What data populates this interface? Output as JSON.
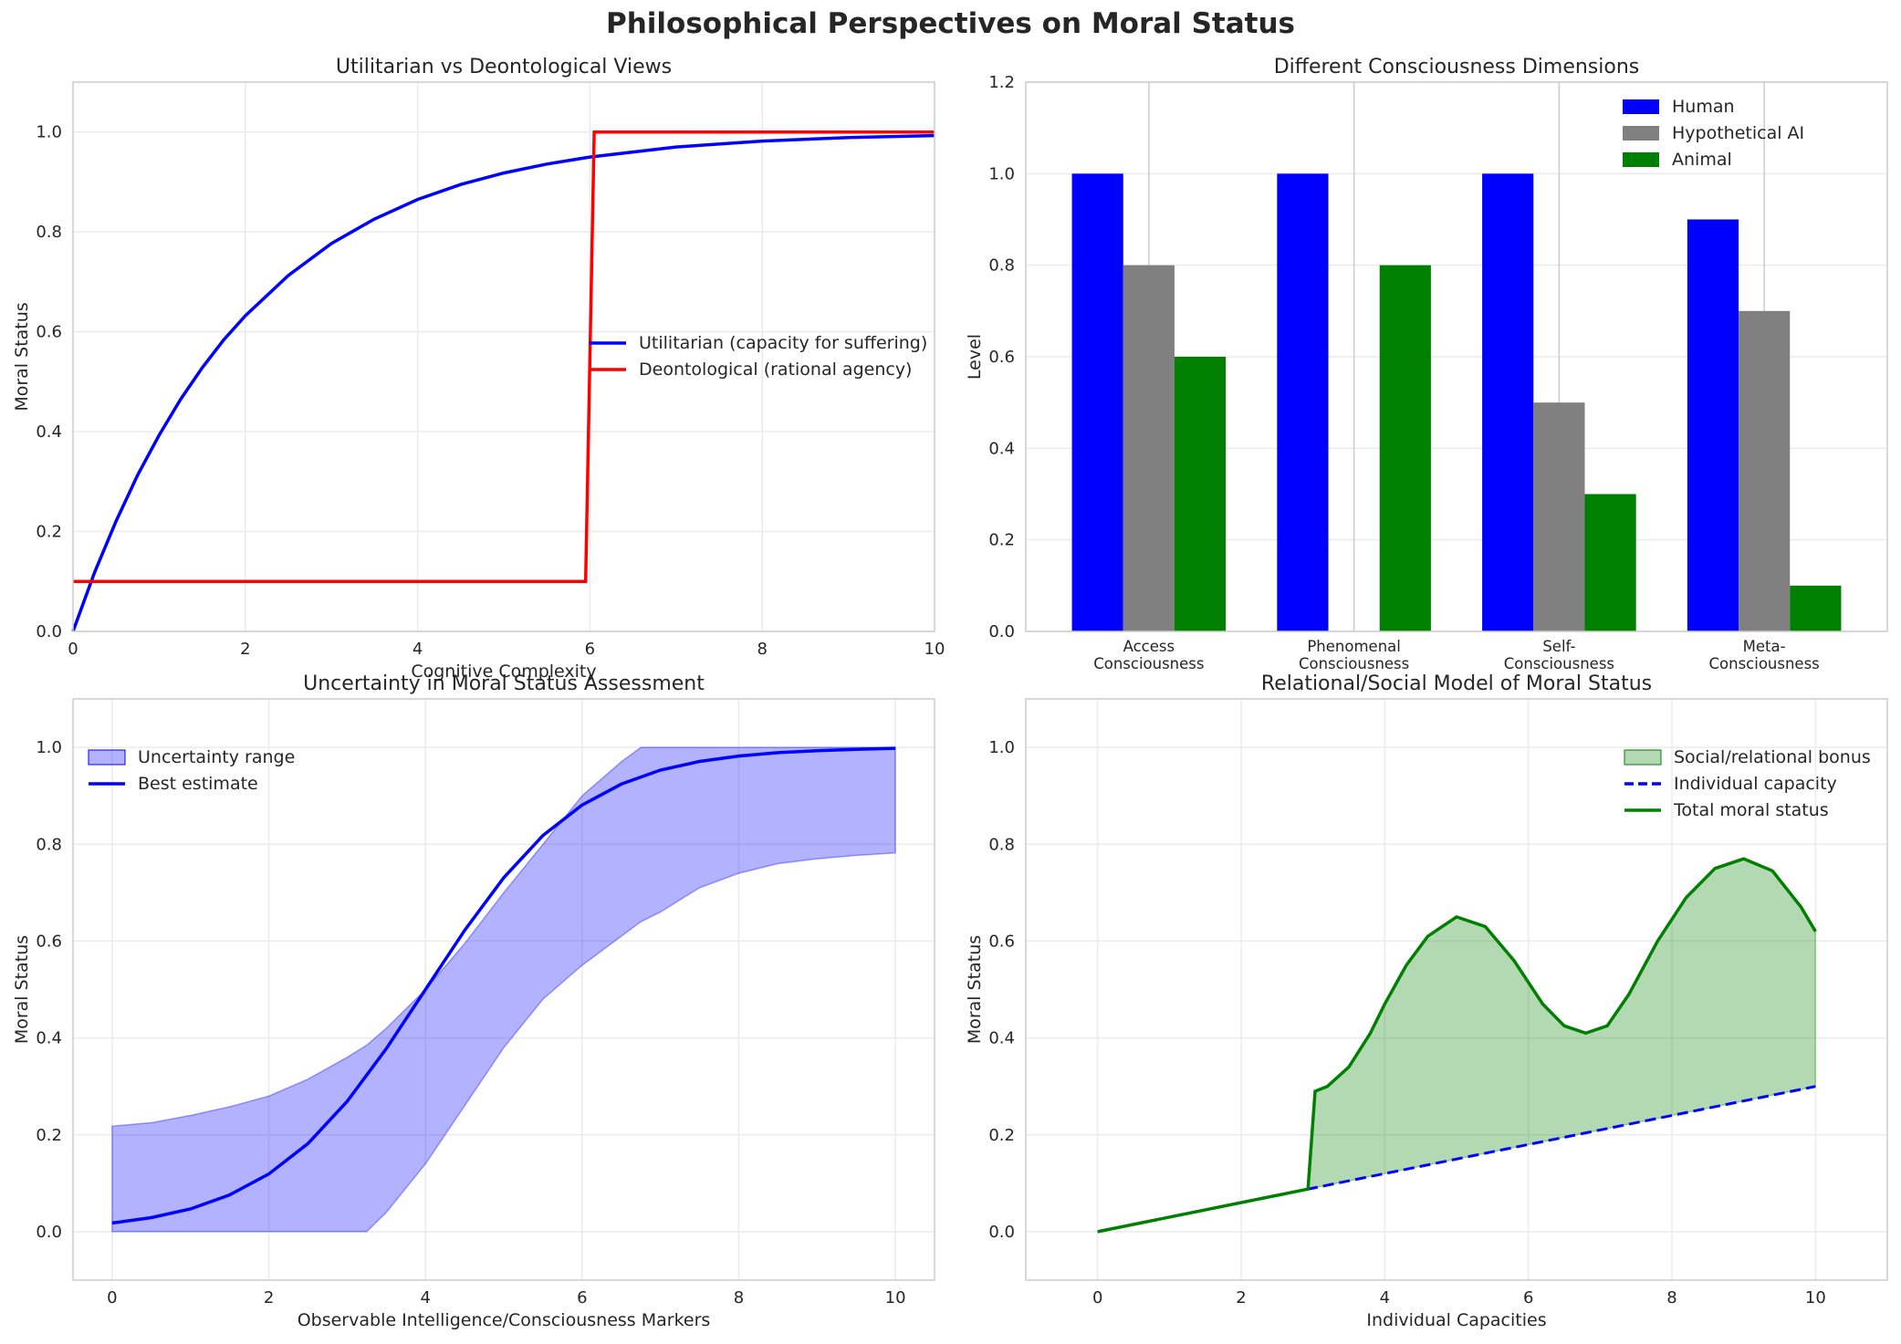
{
  "figure_title": "Philosophical Perspectives on Moral Status",
  "chart_data": [
    {
      "type": "line",
      "title": "Utilitarian vs Deontological Views",
      "xlabel": "Cognitive Complexity",
      "ylabel": "Moral Status",
      "xlim": [
        0,
        10
      ],
      "ylim": [
        0,
        1.1
      ],
      "xticks": [
        "0",
        "2",
        "4",
        "6",
        "8",
        "10"
      ],
      "yticks": [
        "0.0",
        "0.2",
        "0.4",
        "0.6",
        "0.8",
        "1.0"
      ],
      "grid": true,
      "legend": "center-right",
      "series": [
        {
          "name": "Utilitarian (capacity for suffering)",
          "color": "#0000ff",
          "x": [
            0,
            0.25,
            0.5,
            0.75,
            1,
            1.25,
            1.5,
            1.75,
            2,
            2.5,
            3,
            3.5,
            4,
            4.5,
            5,
            5.5,
            6,
            7,
            8,
            9,
            10
          ],
          "y": [
            0,
            0.118,
            0.221,
            0.313,
            0.393,
            0.465,
            0.528,
            0.584,
            0.632,
            0.713,
            0.777,
            0.826,
            0.865,
            0.895,
            0.918,
            0.936,
            0.95,
            0.97,
            0.982,
            0.989,
            0.993
          ]
        },
        {
          "name": "Deontological (rational agency)",
          "color": "#ff0000",
          "x": [
            0,
            5.95,
            6.05,
            10
          ],
          "y": [
            0.1,
            0.1,
            1.0,
            1.0
          ]
        }
      ]
    },
    {
      "type": "bar",
      "title": "Different Consciousness Dimensions",
      "xlabel": "",
      "ylabel": "Level",
      "ylim": [
        0,
        1.2
      ],
      "yticks": [
        "0.0",
        "0.2",
        "0.4",
        "0.6",
        "0.8",
        "1.0",
        "1.2"
      ],
      "categories": [
        [
          "Access",
          "Consciousness"
        ],
        [
          "Phenomenal",
          "Consciousness"
        ],
        [
          "Self-",
          "Consciousness"
        ],
        [
          "Meta-",
          "Consciousness"
        ]
      ],
      "grid": true,
      "legend": "top-right",
      "series": [
        {
          "name": "Human",
          "color": "#0000ff",
          "values": [
            1.0,
            1.0,
            1.0,
            0.9
          ]
        },
        {
          "name": "Hypothetical AI",
          "color": "#808080",
          "values": [
            0.8,
            0.0,
            0.5,
            0.7
          ]
        },
        {
          "name": "Animal",
          "color": "#008000",
          "values": [
            0.6,
            0.8,
            0.3,
            0.1
          ]
        }
      ]
    },
    {
      "type": "area",
      "title": "Uncertainty in Moral Status Assessment",
      "xlabel": "Observable Intelligence/Consciousness Markers",
      "ylabel": "Moral Status",
      "xlim": [
        -0.5,
        10.5
      ],
      "ylim": [
        -0.1,
        1.1
      ],
      "xticks": [
        "0",
        "2",
        "4",
        "6",
        "8",
        "10"
      ],
      "yticks": [
        "0.0",
        "0.2",
        "0.4",
        "0.6",
        "0.8",
        "1.0"
      ],
      "grid": true,
      "legend": "top-left",
      "series": [
        {
          "name": "Uncertainty range",
          "color": "#0000ff",
          "x": [
            0,
            0.5,
            1,
            1.5,
            2,
            2.5,
            3,
            3.25,
            3.5,
            4,
            4.5,
            5,
            5.5,
            6,
            6.5,
            6.75,
            7,
            7.5,
            8,
            8.5,
            9,
            9.5,
            10
          ],
          "upper": [
            0.218,
            0.225,
            0.24,
            0.258,
            0.28,
            0.315,
            0.36,
            0.385,
            0.42,
            0.5,
            0.595,
            0.7,
            0.8,
            0.9,
            0.97,
            1.0,
            1.0,
            1.0,
            1.0,
            1.0,
            1.0,
            1.0,
            1.0
          ],
          "lower": [
            0,
            0,
            0,
            0,
            0,
            0,
            0,
            0,
            0.04,
            0.14,
            0.26,
            0.38,
            0.48,
            0.55,
            0.61,
            0.64,
            0.66,
            0.71,
            0.74,
            0.76,
            0.77,
            0.777,
            0.782
          ]
        },
        {
          "name": "Best estimate",
          "color": "#0000ff",
          "x": [
            0,
            0.5,
            1,
            1.5,
            2,
            2.5,
            3,
            3.5,
            4,
            4.5,
            5,
            5.5,
            6,
            6.5,
            7,
            7.5,
            8,
            8.5,
            9,
            9.5,
            10
          ],
          "y": [
            0.018,
            0.029,
            0.047,
            0.076,
            0.119,
            0.182,
            0.269,
            0.378,
            0.5,
            0.622,
            0.731,
            0.818,
            0.881,
            0.924,
            0.953,
            0.971,
            0.982,
            0.989,
            0.993,
            0.996,
            0.998
          ]
        }
      ]
    },
    {
      "type": "area",
      "title": "Relational/Social Model of Moral Status",
      "xlabel": "Individual Capacities",
      "ylabel": "Moral Status",
      "xlim": [
        -1,
        11
      ],
      "ylim": [
        -0.1,
        1.1
      ],
      "xticks": [
        "0",
        "2",
        "4",
        "6",
        "8",
        "10"
      ],
      "yticks": [
        "0.0",
        "0.2",
        "0.4",
        "0.6",
        "0.8",
        "1.0"
      ],
      "grid": true,
      "legend": "top-right",
      "series": [
        {
          "name": "Social/relational bonus",
          "color": "#008000"
        },
        {
          "name": "Individual capacity",
          "color": "#0000ff",
          "x": [
            0,
            10
          ],
          "y": [
            0,
            0.3
          ]
        },
        {
          "name": "Total moral status",
          "color": "#008000",
          "x": [
            0,
            2.93,
            3.03,
            3.2,
            3.5,
            3.8,
            4,
            4.3,
            4.6,
            5,
            5.4,
            5.8,
            6.2,
            6.5,
            6.8,
            7.1,
            7.4,
            7.8,
            8.2,
            8.6,
            9,
            9.4,
            9.8,
            10
          ],
          "y": [
            0,
            0.088,
            0.29,
            0.3,
            0.34,
            0.41,
            0.47,
            0.55,
            0.61,
            0.65,
            0.63,
            0.56,
            0.47,
            0.425,
            0.41,
            0.425,
            0.49,
            0.6,
            0.69,
            0.75,
            0.77,
            0.745,
            0.67,
            0.62
          ]
        }
      ]
    }
  ]
}
